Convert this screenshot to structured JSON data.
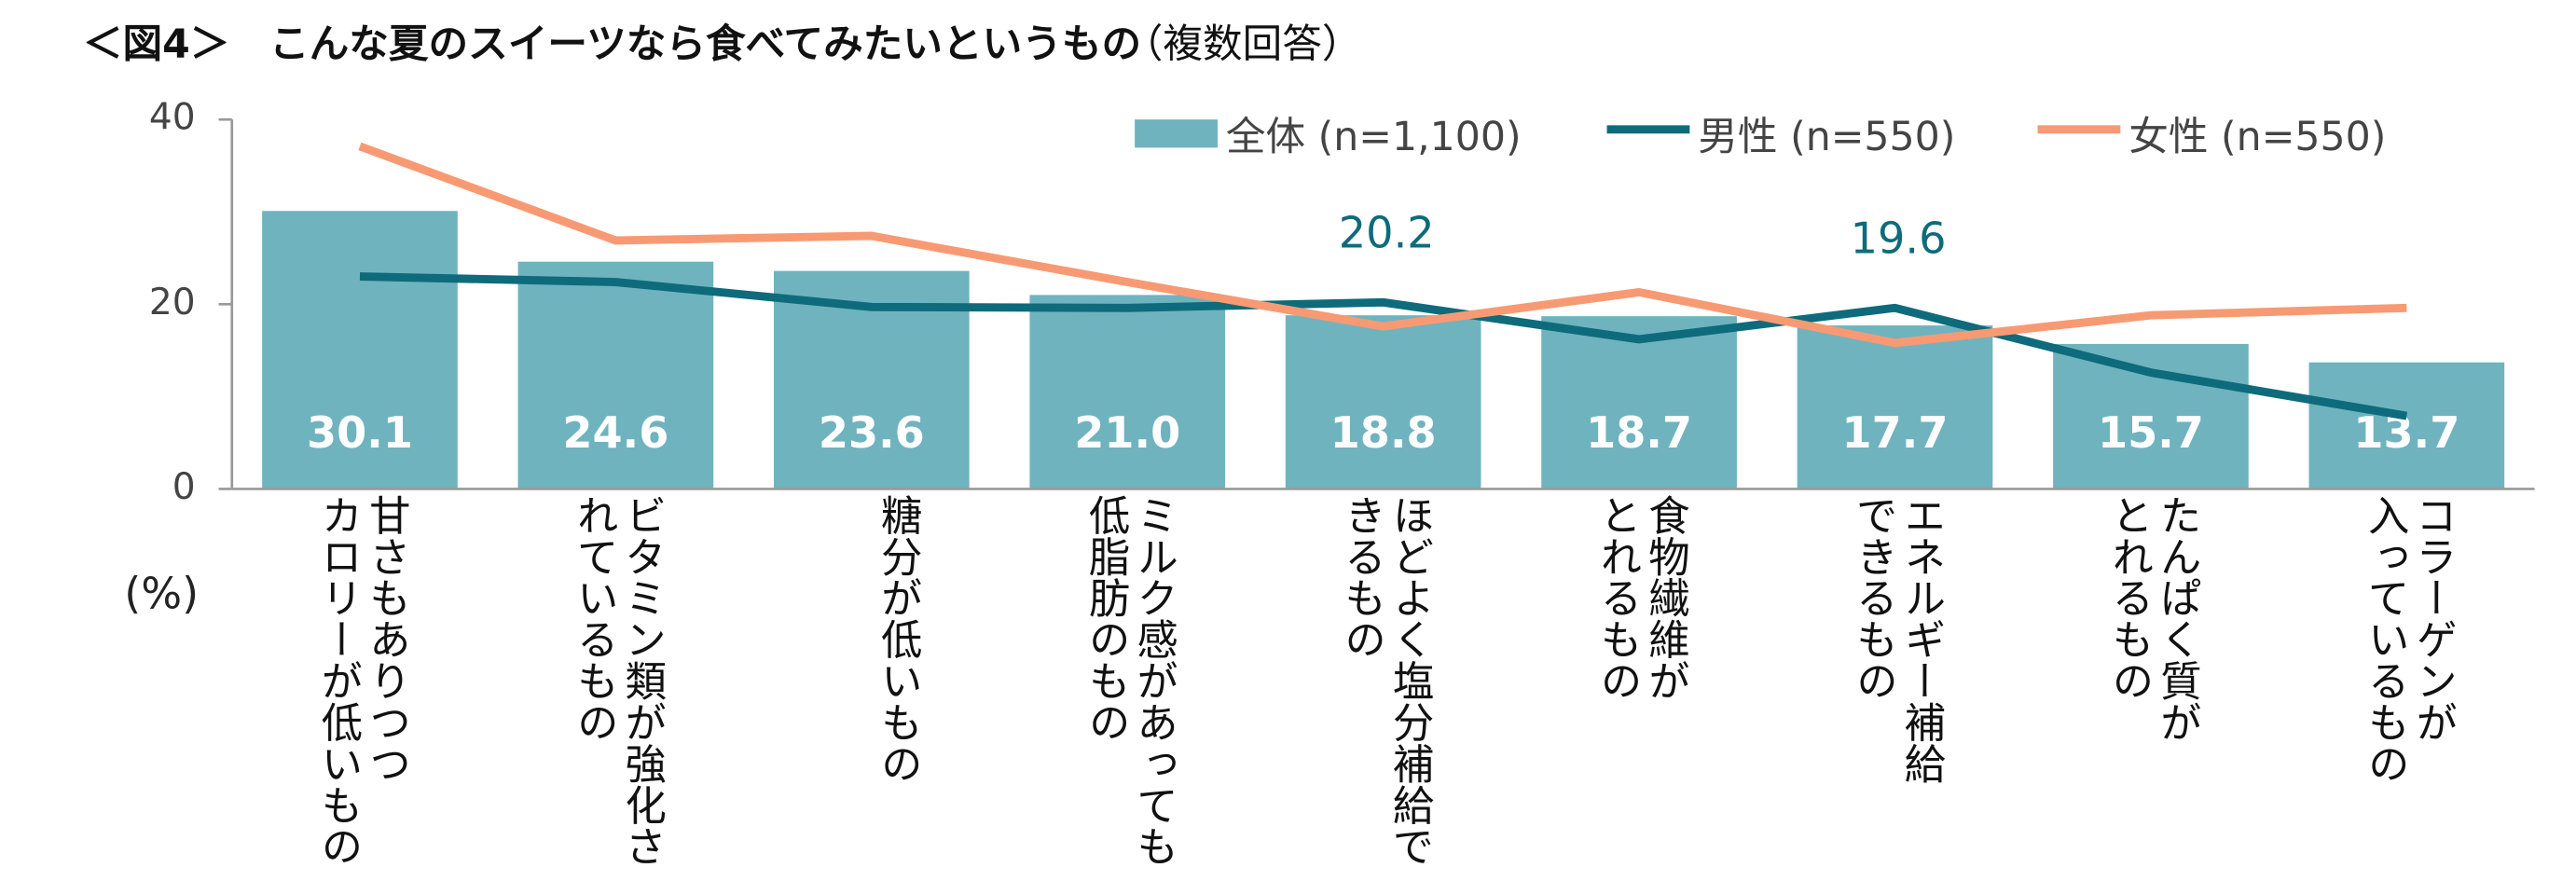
{
  "chart_data": {
    "type": "bar_line",
    "title": "＜図4＞　こんな夏のスイーツなら食べてみたいというもの",
    "subtitle": "（複数回答）",
    "y_label": "(%)",
    "categories": [
      [
        "甘さもありつつ",
        "カロリーが低いもの"
      ],
      [
        "ビタミン類が強化さ",
        "れているもの"
      ],
      [
        "糖分が低いもの"
      ],
      [
        "ミルク感があっても",
        "低脂肪のもの"
      ],
      [
        "ほどよく塩分補給で",
        "きるもの"
      ],
      [
        "食物繊維が",
        "とれるもの"
      ],
      [
        "エネルギー補給",
        "できるもの"
      ],
      [
        "たんぱく質が",
        "とれるもの"
      ],
      [
        "コラーゲンが",
        "入っているもの"
      ]
    ],
    "series": [
      {
        "name": "全体 (n=1,100)",
        "kind": "bar",
        "color": "#6fb3bf",
        "values": [
          30.1,
          24.6,
          23.6,
          21.0,
          18.8,
          18.7,
          17.7,
          15.7,
          13.7
        ],
        "value_labels": [
          "30.1",
          "24.6",
          "23.6",
          "21.0",
          "18.8",
          "18.7",
          "17.7",
          "15.7",
          "13.7"
        ]
      },
      {
        "name": "男性 (n=550)",
        "kind": "line",
        "color": "#0e6b7b",
        "values": [
          23.0,
          22.4,
          19.7,
          19.6,
          20.2,
          16.2,
          19.6,
          12.6,
          7.9
        ],
        "value_labels": [
          null,
          null,
          null,
          null,
          "20.2",
          null,
          "19.6",
          null,
          null
        ]
      },
      {
        "name": "女性 (n=550)",
        "kind": "line",
        "color": "#f79a73",
        "values": [
          37.1,
          26.9,
          27.4,
          22.4,
          17.6,
          21.3,
          15.8,
          18.8,
          19.6
        ]
      }
    ],
    "ylim": [
      0,
      40
    ],
    "yticks": [
      0,
      20,
      40
    ]
  }
}
